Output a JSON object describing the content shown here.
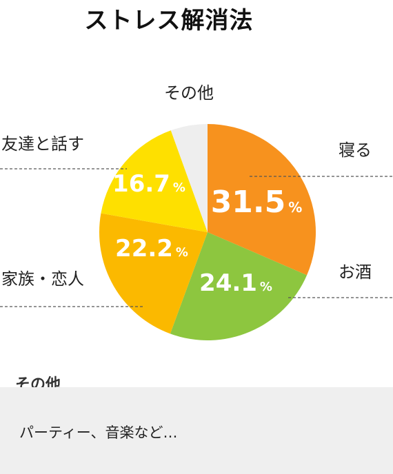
{
  "chart_data": {
    "type": "pie",
    "title": "ストレス解消法",
    "slices": [
      {
        "label": "寝る",
        "value": 31.5,
        "color": "#f7921e",
        "show_pct": true
      },
      {
        "label": "お酒",
        "value": 24.1,
        "color": "#8dc63f",
        "show_pct": true
      },
      {
        "label": "家族・恋人",
        "value": 22.2,
        "color": "#fbb900",
        "show_pct": true
      },
      {
        "label": "友達と話す",
        "value": 16.7,
        "color": "#fee000",
        "show_pct": true
      },
      {
        "label": "その他",
        "value": 5.5,
        "color": "#eeeeee",
        "show_pct": false
      }
    ],
    "unit": "%",
    "legend": "callout-labels"
  },
  "note": {
    "heading": "その他",
    "text": "パーティー、音楽など…"
  }
}
